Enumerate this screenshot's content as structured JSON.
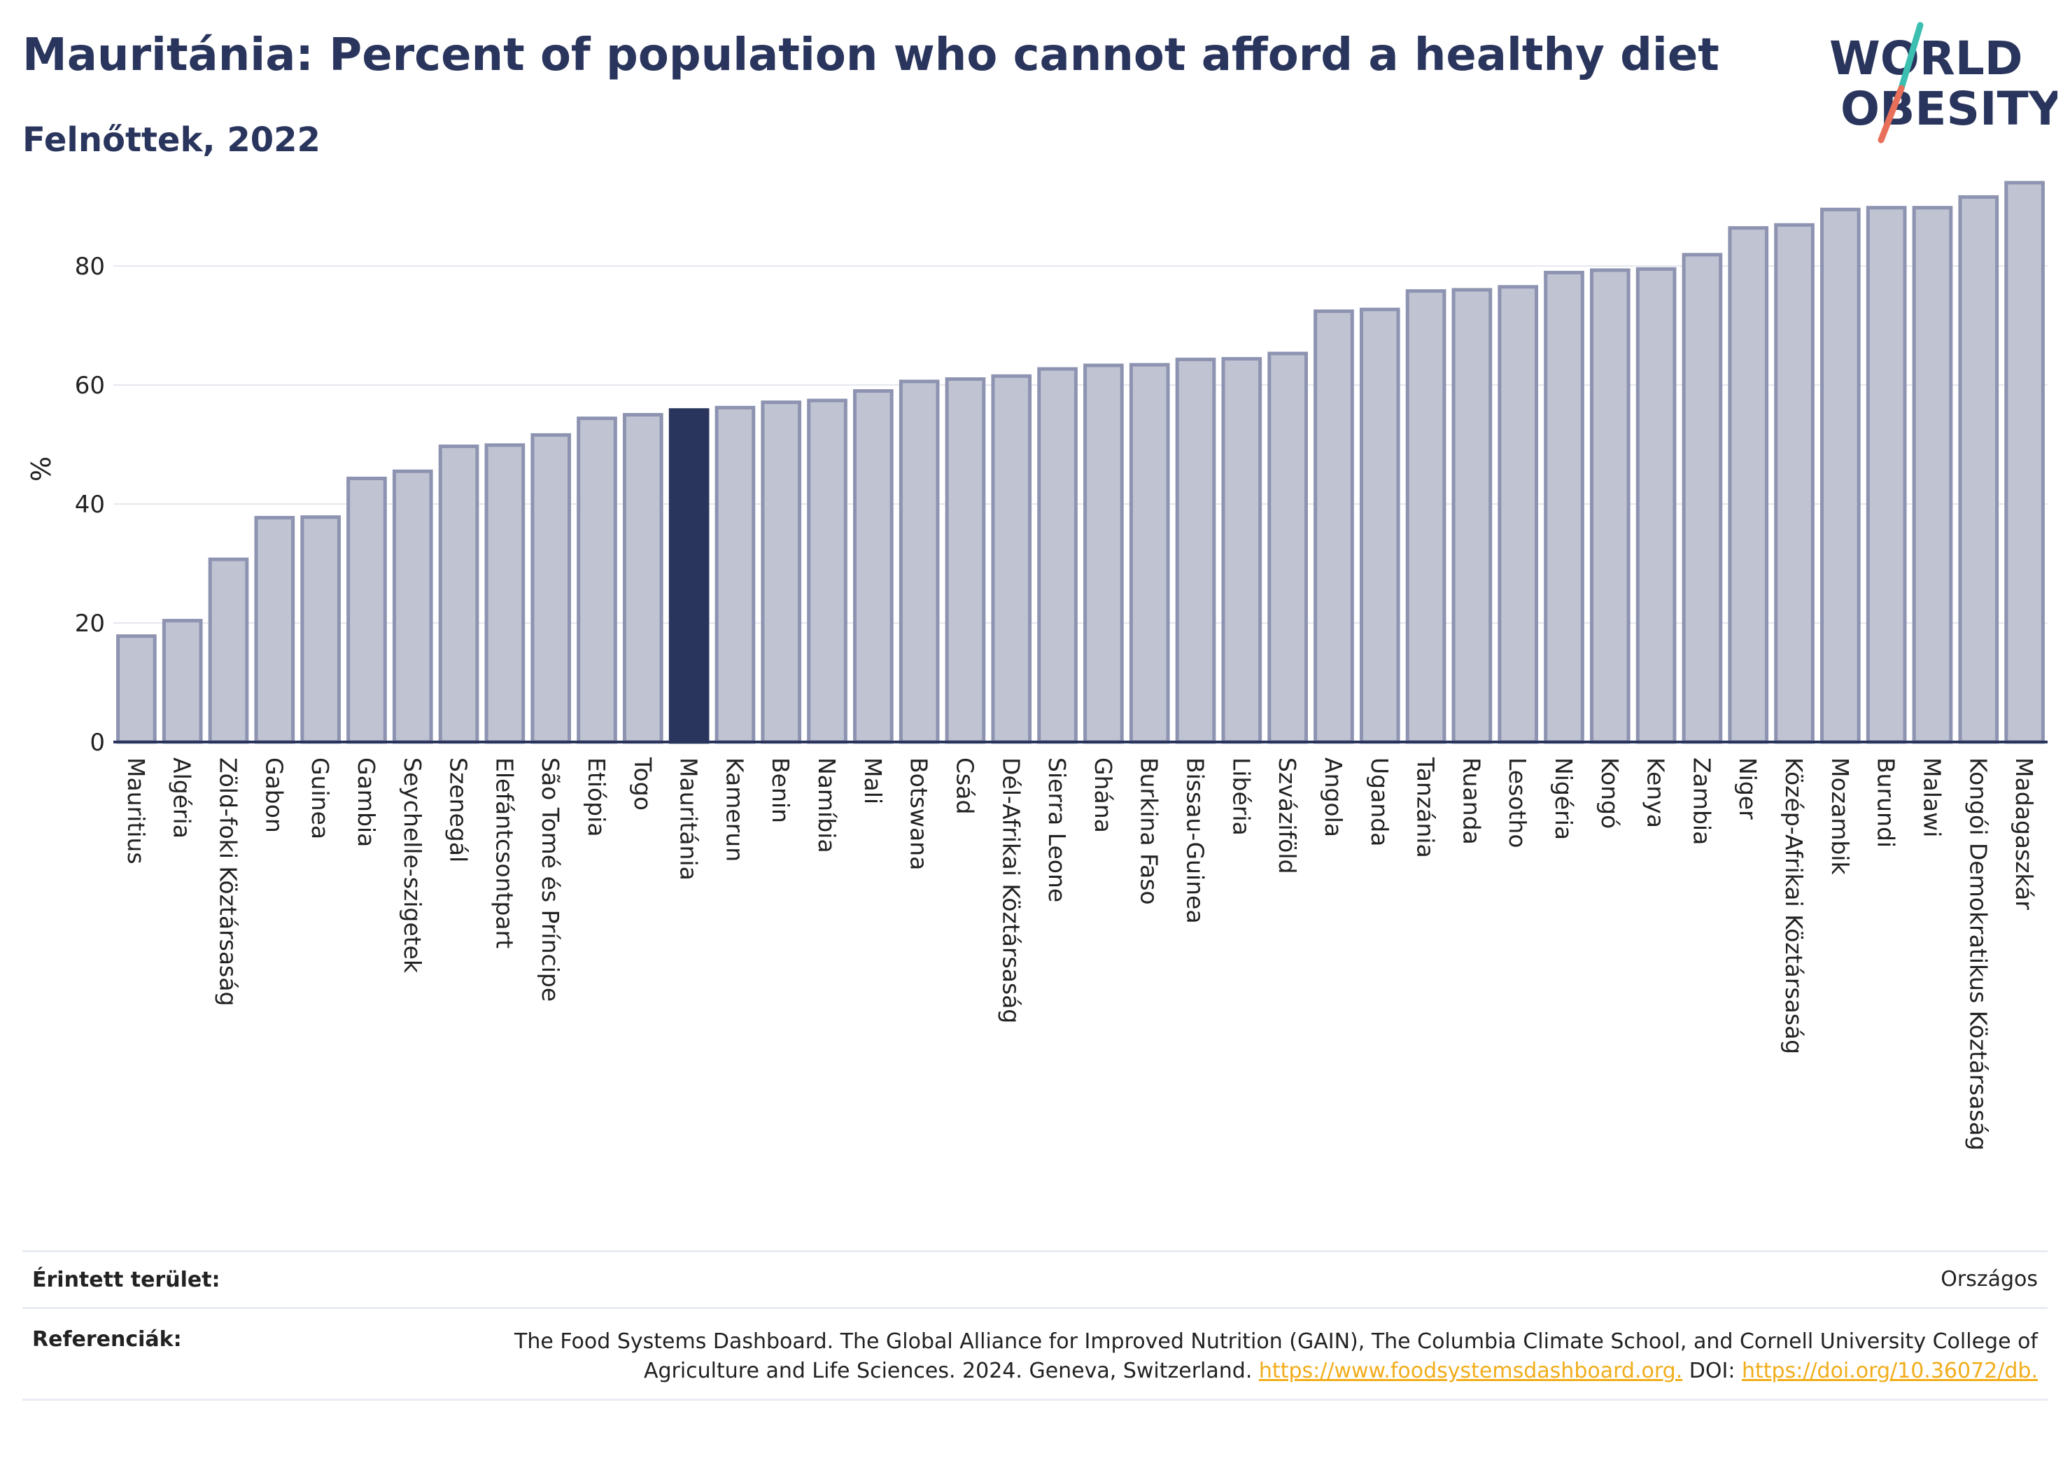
{
  "header": {
    "title": "Mauritánia: Percent of population who cannot afford a healthy diet",
    "subtitle": "Felnőttek, 2022"
  },
  "logo": {
    "line1": "WORLD",
    "line2": "OBESITY"
  },
  "colors": {
    "bar_fill": "#bfc3d2",
    "bar_stroke": "#8d93b0",
    "highlight": "#2a355d",
    "grid": "#e6e8f0",
    "axis": "#2a355d",
    "logo_text": "#2a355d",
    "logo_slash_top": "#3bbfb0",
    "logo_slash_bottom": "#e8705a",
    "link": "#f1ad1b"
  },
  "chart_data": {
    "type": "bar",
    "ylabel": "%",
    "ylim": [
      0,
      100
    ],
    "yticks": [
      0,
      20,
      40,
      60,
      80
    ],
    "grid": true,
    "highlight": "Mauritánia",
    "categories": [
      "Mauritius",
      "Algéria",
      "Zöld-foki Köztársaság",
      "Gabon",
      "Guinea",
      "Gambia",
      "Seychelle-szigetek",
      "Szenegál",
      "Elefántcsontpart",
      "São Tomé és Príncipe",
      "Etiópia",
      "Togo",
      "Mauritánia",
      "Kamerun",
      "Benin",
      "Namíbia",
      "Mali",
      "Botswana",
      "Csád",
      "Dél-Afrikai Köztársaság",
      "Sierra Leone",
      "Ghána",
      "Burkina Faso",
      "Bissau-Guinea",
      "Libéria",
      "Szváziföld",
      "Angola",
      "Uganda",
      "Tanzánia",
      "Ruanda",
      "Lesotho",
      "Nigéria",
      "Kongó",
      "Kenya",
      "Zambia",
      "Niger",
      "Közép-Afrikai Köztársaság",
      "Mozambik",
      "Burundi",
      "Malawi",
      "Kongói Demokratikus Köztársaság",
      "Madagaszkár"
    ],
    "values": [
      17.8,
      20.4,
      30.7,
      37.7,
      37.8,
      44.3,
      45.5,
      49.7,
      49.9,
      51.6,
      54.4,
      55.0,
      55.8,
      56.2,
      57.1,
      57.4,
      59.0,
      60.6,
      61.0,
      61.5,
      62.7,
      63.3,
      63.4,
      64.3,
      64.4,
      65.3,
      72.4,
      72.7,
      75.8,
      76.0,
      76.5,
      78.9,
      79.3,
      79.5,
      81.9,
      86.4,
      86.9,
      89.5,
      89.8,
      89.8,
      91.6,
      94.0
    ]
  },
  "info": {
    "area_label": "Érintett terület:",
    "area_value": "Országos",
    "ref_label": "Referenciák:",
    "ref_text": "The Food Systems Dashboard. The Global Alliance for Improved Nutrition (GAIN), The Columbia Climate School, and Cornell University College of Agriculture and Life Sciences. 2024. Geneva, Switzerland.",
    "ref_link1": "https://www.foodsystemsdashboard.org.",
    "ref_doi_prefix": "DOI:",
    "ref_link2": "https://doi.org/10.36072/db."
  }
}
